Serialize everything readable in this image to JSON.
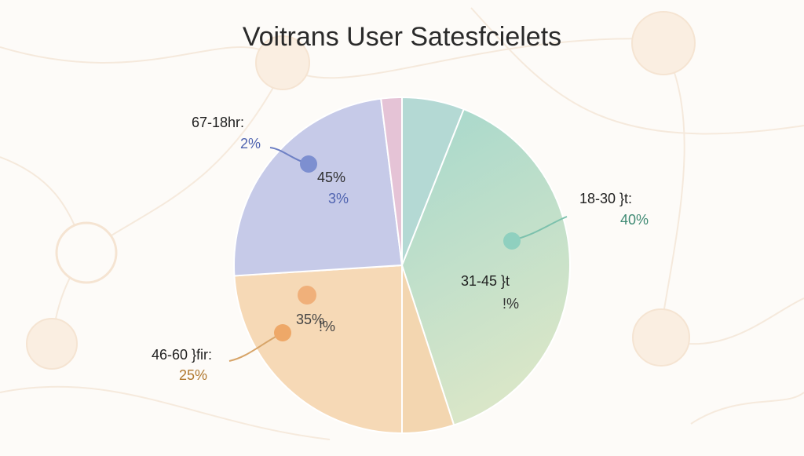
{
  "chart_data": {
    "type": "pie",
    "title": "Voitrans User Satesfcielets",
    "slices": [
      {
        "category": "18-30 }t:",
        "value_label": "40%",
        "color": "#a9d6c8",
        "value_color": "#3f8a74"
      },
      {
        "category": "31-45 }t",
        "value_label": "!%",
        "color": "#b9ddd4",
        "value_color": "#333333"
      },
      {
        "category": "46-60 }fir:",
        "value_label": "25%",
        "color": "#f6d9b6",
        "value_color": "#b0782f"
      },
      {
        "category": "",
        "value_label": "35%",
        "secondary_label": "!%",
        "color": "#f6d9b6",
        "value_color": "#444444"
      },
      {
        "category": "67-18hr:",
        "value_label": "2%",
        "color": "#c5c9e6",
        "value_color": "#4f63b0"
      },
      {
        "category": "",
        "value_label": "45%",
        "secondary_label": "3%",
        "color": "#c5c9e6",
        "value_color": "#4f63b0"
      }
    ],
    "wedges": [
      {
        "value": 6,
        "color": "#b4d9d4"
      },
      {
        "value": 39,
        "color": "#bfe0d4"
      },
      {
        "value": 5,
        "color": "#f3d6b0"
      },
      {
        "value": 24,
        "color": "#f6d9b6"
      },
      {
        "value": 24,
        "color": "#c6cae8"
      },
      {
        "value": 2,
        "color": "#e5c3d6"
      }
    ],
    "legend": "none"
  }
}
